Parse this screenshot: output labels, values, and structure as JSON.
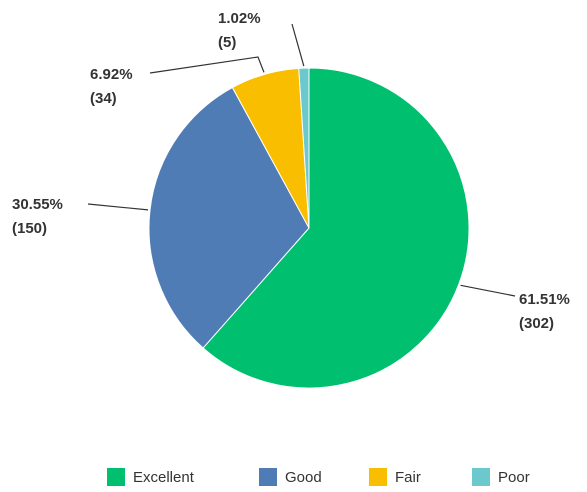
{
  "chart_data": {
    "type": "pie",
    "categories": [
      "Excellent",
      "Good",
      "Fair",
      "Poor"
    ],
    "values": [
      302,
      150,
      34,
      5
    ],
    "value_labels": [
      "(302)",
      "(150)",
      "(34)",
      "(5)"
    ],
    "percentages": [
      61.51,
      30.55,
      6.92,
      1.02
    ],
    "percentage_labels": [
      "61.51%",
      "30.55%",
      "6.92%",
      "1.02%"
    ],
    "colors": [
      "#00bf6f",
      "#507cb6",
      "#f9be00",
      "#6bc8cd"
    ],
    "legend": "bottom"
  }
}
